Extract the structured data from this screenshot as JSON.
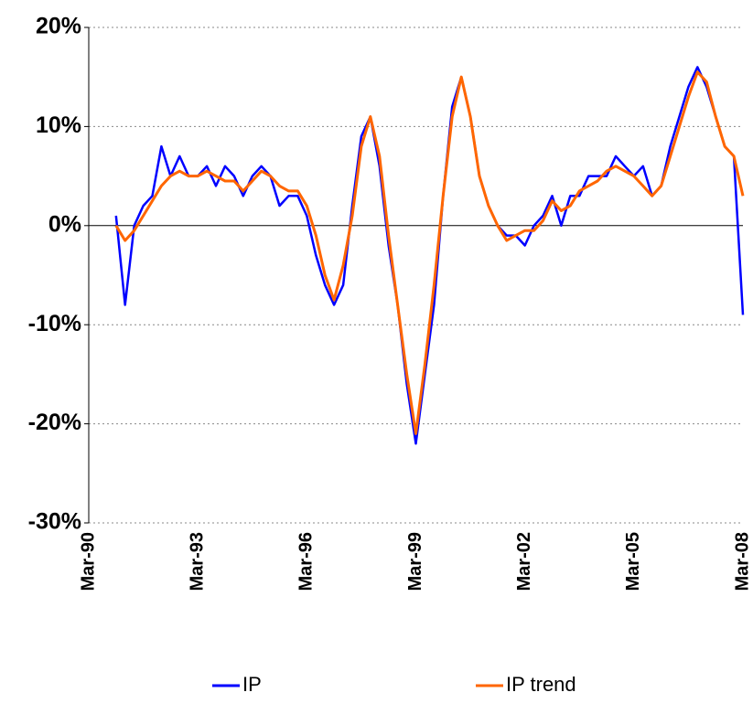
{
  "chart_data": {
    "type": "line",
    "categories": [
      "Mar-90",
      null,
      null,
      null,
      null,
      null,
      null,
      null,
      null,
      null,
      null,
      null,
      "Mar-93",
      null,
      null,
      null,
      null,
      null,
      null,
      null,
      null,
      null,
      null,
      null,
      "Mar-96",
      null,
      null,
      null,
      null,
      null,
      null,
      null,
      null,
      null,
      null,
      null,
      "Mar-99",
      null,
      null,
      null,
      null,
      null,
      null,
      null,
      null,
      null,
      null,
      null,
      "Mar-02",
      null,
      null,
      null,
      null,
      null,
      null,
      null,
      null,
      null,
      null,
      null,
      "Mar-05",
      null,
      null,
      null,
      null,
      null,
      null,
      null,
      null,
      null,
      null,
      null,
      "Mar-08"
    ],
    "series": [
      {
        "name": "IP",
        "color": "#0000ff",
        "values": [
          null,
          null,
          null,
          1,
          -8,
          0,
          2,
          3,
          8,
          5,
          7,
          5,
          5,
          6,
          4,
          6,
          5,
          3,
          5,
          6,
          5,
          2,
          3,
          3,
          1,
          -3,
          -6,
          -8,
          -6,
          2,
          9,
          11,
          6,
          -2,
          -8,
          -16,
          -22,
          -15,
          -8,
          3,
          12,
          15,
          11,
          5,
          2,
          0,
          -1,
          -1,
          -2,
          0,
          1,
          3,
          0,
          3,
          3,
          5,
          5,
          5,
          7,
          6,
          5,
          6,
          3,
          4,
          8,
          11,
          14,
          16,
          14,
          11,
          8,
          7,
          -9
        ]
      },
      {
        "name": "IP trend",
        "color": "#ff6600",
        "values": [
          null,
          null,
          null,
          0,
          -1.5,
          -0.5,
          1,
          2.5,
          4,
          5,
          5.5,
          5,
          5,
          5.5,
          5,
          4.5,
          4.5,
          3.5,
          4.5,
          5.5,
          5,
          4,
          3.5,
          3.5,
          2,
          -1,
          -5,
          -7.5,
          -4,
          1,
          8,
          11,
          7,
          -1,
          -8,
          -15,
          -21,
          -14,
          -6,
          3,
          11,
          15,
          11,
          5,
          2,
          0,
          -1.5,
          -1,
          -0.5,
          -0.5,
          0.5,
          2.5,
          1.5,
          2,
          3.5,
          4,
          4.5,
          5.5,
          6,
          5.5,
          5,
          4,
          3,
          4,
          7,
          10,
          13,
          15.5,
          14.5,
          11,
          8,
          7,
          3
        ]
      }
    ],
    "ylim": [
      -30,
      20
    ],
    "yticks": [
      {
        "value": -30,
        "label": "-30%"
      },
      {
        "value": -20,
        "label": "-20%"
      },
      {
        "value": -10,
        "label": "-10%"
      },
      {
        "value": 0,
        "label": "0%"
      },
      {
        "value": 10,
        "label": "10%"
      },
      {
        "value": 20,
        "label": "20%"
      }
    ],
    "grid": true
  }
}
